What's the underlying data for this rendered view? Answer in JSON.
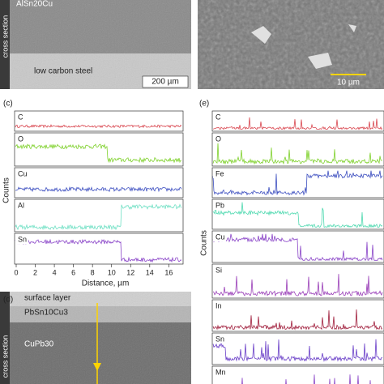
{
  "panels": {
    "a": {
      "material": "AlSn20Cu",
      "side": "cross section",
      "substrate": "low carbon steel",
      "scale": "200 µm"
    },
    "b": {
      "scale": "10 µm"
    },
    "c": {
      "tag": "(c)",
      "ylabel": "Counts",
      "xlabel": "Distance, µm",
      "xlim": [
        0,
        17.5
      ],
      "xticks": [
        0,
        2,
        4,
        6,
        8,
        10,
        12,
        14,
        16
      ],
      "strips": [
        "C",
        "O",
        "Cu",
        "Al",
        "Sn"
      ],
      "colors": [
        "#d9464f",
        "#7fd12c",
        "#3d4fc0",
        "#6fe0c4",
        "#8a45c8"
      ]
    },
    "d": {
      "tag": "(d)",
      "top": "surface layer",
      "middle": "PbSn10Cu3",
      "bottom": "CuPb30",
      "side": "cross section"
    },
    "e": {
      "tag": "(e)",
      "ylabel": "Counts",
      "strips": [
        "C",
        "O",
        "Fe",
        "Pb",
        "Cu",
        "Si",
        "In",
        "Sn",
        "Mn"
      ],
      "colors": [
        "#d9464f",
        "#7fd12c",
        "#3d4fc0",
        "#4fd9b0",
        "#8a45c8",
        "#9a3fb8",
        "#a01e3c",
        "#6a3fc8",
        "#8a45c8"
      ]
    }
  }
}
